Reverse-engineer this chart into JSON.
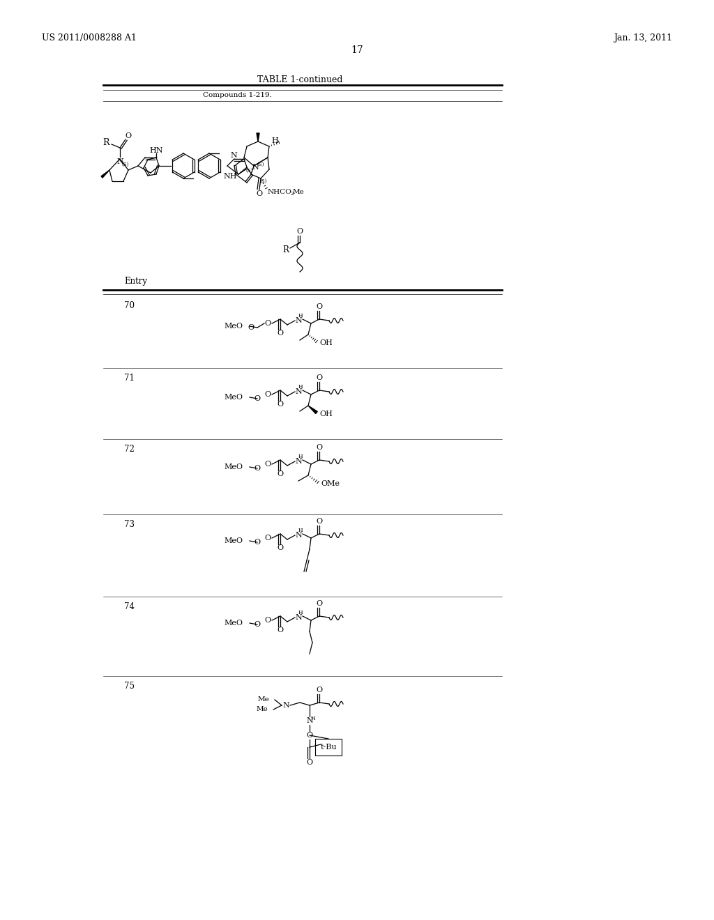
{
  "header_left": "US 2011/0008288 A1",
  "header_right": "Jan. 13, 2011",
  "page_number": "17",
  "table_title": "TABLE 1-continued",
  "table_subtitle": "Compounds 1-219.",
  "entry_label": "Entry",
  "entries": [
    "70",
    "71",
    "72",
    "73",
    "74",
    "75"
  ],
  "bg_color": "#ffffff",
  "text_color": "#000000"
}
